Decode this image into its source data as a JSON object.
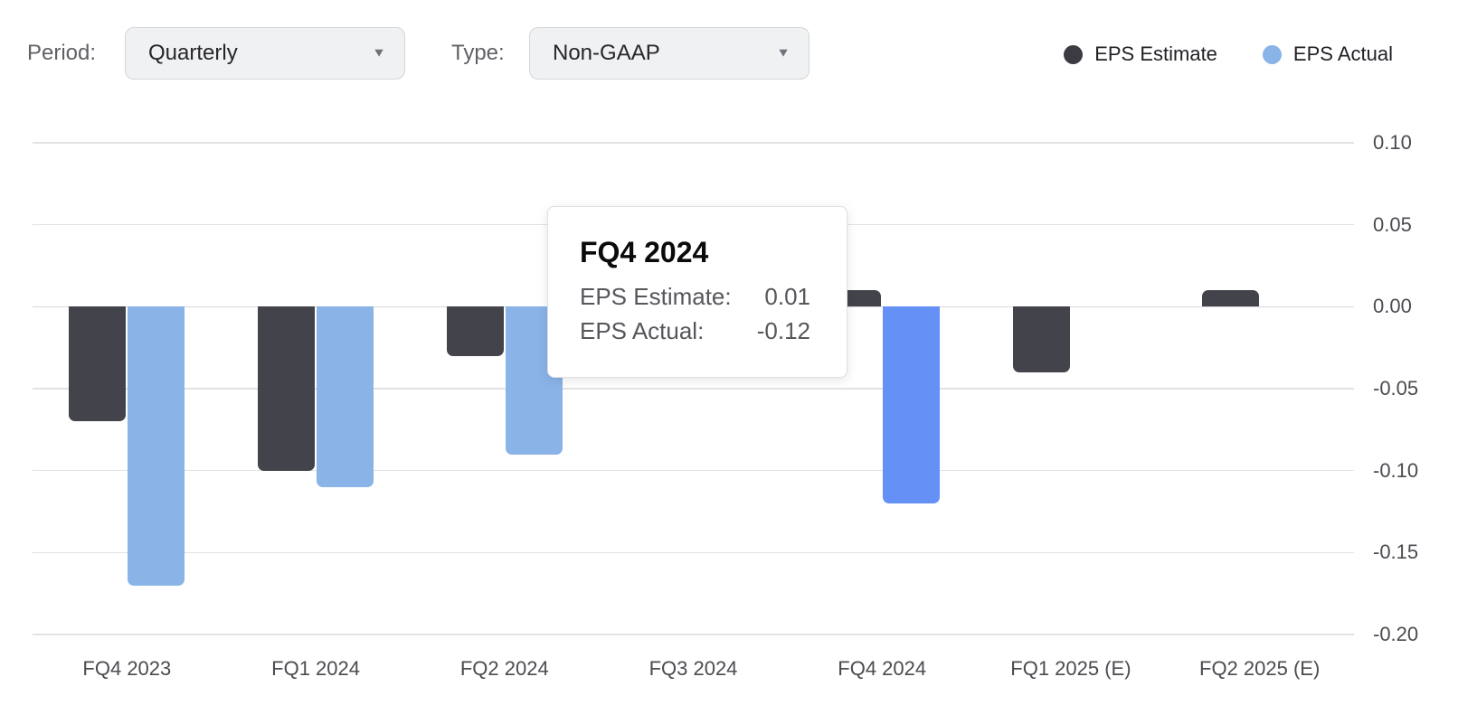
{
  "controls": {
    "period_label": "Period:",
    "period_value": "Quarterly",
    "type_label": "Type:",
    "type_value": "Non-GAAP",
    "dropdown_arrow": "▼"
  },
  "legend": [
    {
      "label": "EPS Estimate",
      "color": "#3b3b43"
    },
    {
      "label": "EPS Actual",
      "color": "#8ab3e8"
    }
  ],
  "tooltip": {
    "title": "FQ4 2024",
    "rows": [
      {
        "label": "EPS Estimate:",
        "value": "0.01"
      },
      {
        "label": "EPS Actual:",
        "value": "-0.12"
      }
    ]
  },
  "chart_data": {
    "type": "bar",
    "title": "",
    "xlabel": "",
    "ylabel": "",
    "categories": [
      "FQ4 2023",
      "FQ1 2024",
      "FQ2 2024",
      "FQ3 2024",
      "FQ4 2024",
      "FQ1 2025 (E)",
      "FQ2 2025 (E)"
    ],
    "series": [
      {
        "name": "EPS Estimate",
        "color": "#43434b",
        "values": [
          -0.07,
          -0.1,
          -0.03,
          null,
          0.01,
          -0.04,
          0.01
        ]
      },
      {
        "name": "EPS Actual",
        "color": "#8ab3e8",
        "highlight_color": "#6590f6",
        "highlighted_index": 4,
        "values": [
          -0.17,
          -0.11,
          -0.09,
          null,
          -0.12,
          null,
          null
        ]
      }
    ],
    "note": "FQ3 2024 bars hidden behind tooltip",
    "ylim": [
      -0.2,
      0.1
    ],
    "yticks": [
      "0.10",
      "0.05",
      "0.00",
      "-0.05",
      "-0.10",
      "-0.15",
      "-0.20"
    ],
    "grid": true,
    "legend_position": "top-right"
  }
}
